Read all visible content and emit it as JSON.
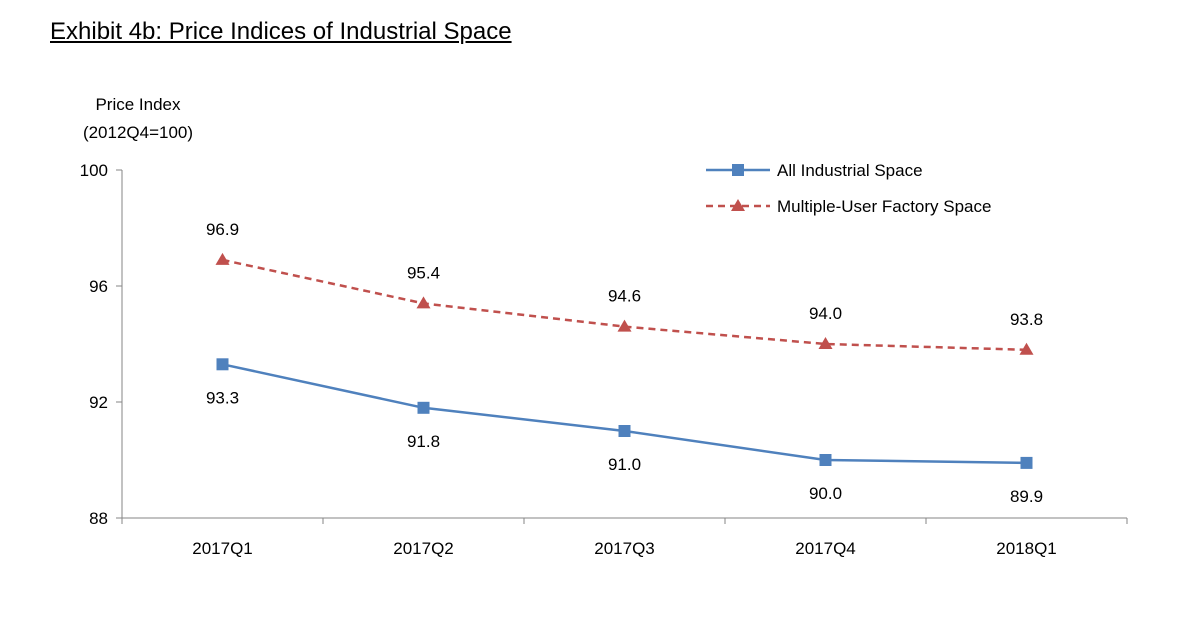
{
  "chart_data": {
    "type": "line",
    "title": "Exhibit 4b: Price Indices of Industrial Space",
    "ylabel": [
      "Price Index",
      "(2012Q4=100)"
    ],
    "xlabel": "",
    "categories": [
      "2017Q1",
      "2017Q2",
      "2017Q3",
      "2017Q4",
      "2018Q1"
    ],
    "ylim": [
      88,
      100
    ],
    "yticks": [
      88,
      92,
      96,
      100
    ],
    "grid": false,
    "legend_position": "top-right",
    "series": [
      {
        "name": "All Industrial Space",
        "values": [
          93.3,
          91.8,
          91.0,
          90.0,
          89.9
        ],
        "labels": [
          "93.3",
          "91.8",
          "91.0",
          "90.0",
          "89.9"
        ],
        "color": "#4F81BD",
        "style": "solid",
        "marker": "square"
      },
      {
        "name": "Multiple-User Factory Space",
        "values": [
          96.9,
          95.4,
          94.6,
          94.0,
          93.8
        ],
        "labels": [
          "96.9",
          "95.4",
          "94.6",
          "94.0",
          "93.8"
        ],
        "color": "#C0504D",
        "style": "dashed",
        "marker": "triangle"
      }
    ]
  }
}
